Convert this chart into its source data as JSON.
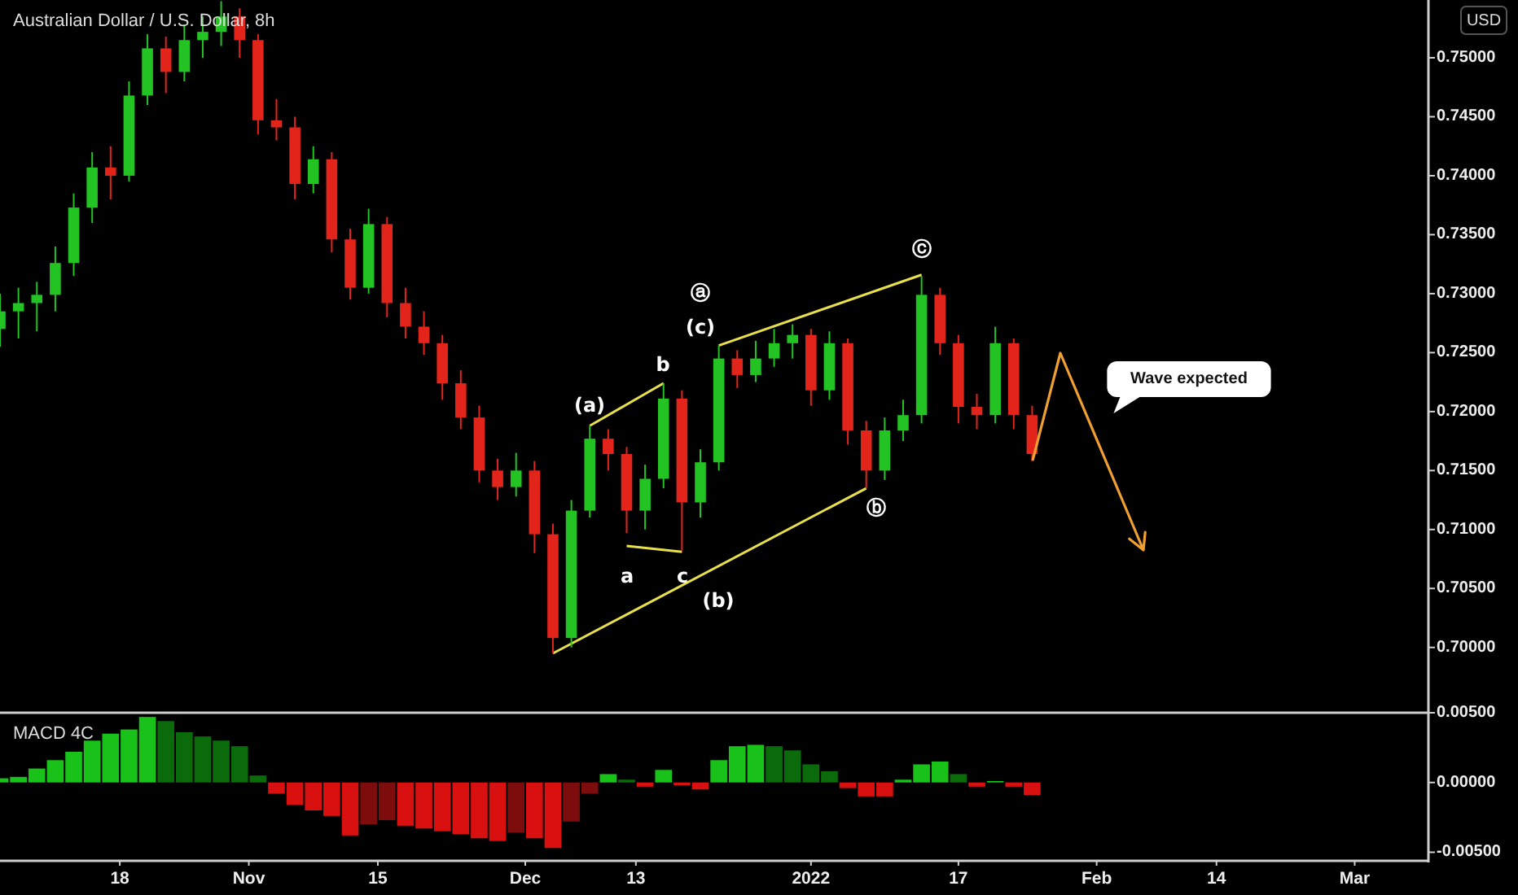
{
  "chart_data": [
    {
      "type": "candlestick",
      "title": "Australian Dollar / U.S. Dollar, 8h",
      "ylabel": "USD",
      "x": [
        "2021-10-05",
        "2021-10-07",
        "2021-10-09",
        "2021-10-11",
        "2021-10-13",
        "2021-10-15",
        "2021-10-17",
        "2021-10-19",
        "2021-10-21",
        "2021-10-23",
        "2021-10-25",
        "2021-10-27",
        "2021-10-29",
        "2021-10-31",
        "2021-11-02",
        "2021-11-04",
        "2021-11-06",
        "2021-11-08",
        "2021-11-10",
        "2021-11-12",
        "2021-11-14",
        "2021-11-16",
        "2021-11-18",
        "2021-11-20",
        "2021-11-22",
        "2021-11-24",
        "2021-11-26",
        "2021-11-28",
        "2021-11-30",
        "2021-12-02",
        "2021-12-04",
        "2021-12-06",
        "2021-12-08",
        "2021-12-10",
        "2021-12-12",
        "2021-12-14",
        "2021-12-16",
        "2021-12-18",
        "2021-12-20",
        "2021-12-22",
        "2021-12-24",
        "2021-12-26",
        "2021-12-28",
        "2021-12-30",
        "2022-01-01",
        "2022-01-03",
        "2022-01-05",
        "2022-01-07",
        "2022-01-09",
        "2022-01-11",
        "2022-01-13",
        "2022-01-15",
        "2022-01-17",
        "2022-01-19",
        "2022-01-21",
        "2022-01-23",
        "2022-01-25"
      ],
      "ohlc": [
        [
          0.727,
          0.73,
          0.7255,
          0.7285
        ],
        [
          0.7285,
          0.7305,
          0.7262,
          0.7292
        ],
        [
          0.7292,
          0.731,
          0.7268,
          0.7299
        ],
        [
          0.7299,
          0.734,
          0.7285,
          0.7326
        ],
        [
          0.7326,
          0.7385,
          0.7315,
          0.7373
        ],
        [
          0.7373,
          0.742,
          0.736,
          0.7407
        ],
        [
          0.7407,
          0.7425,
          0.738,
          0.74
        ],
        [
          0.74,
          0.748,
          0.7395,
          0.7468
        ],
        [
          0.7468,
          0.752,
          0.746,
          0.7508
        ],
        [
          0.7508,
          0.7518,
          0.747,
          0.7488
        ],
        [
          0.7488,
          0.7528,
          0.748,
          0.7515
        ],
        [
          0.7515,
          0.7535,
          0.75,
          0.7522
        ],
        [
          0.7522,
          0.7548,
          0.751,
          0.7535
        ],
        [
          0.7535,
          0.7542,
          0.75,
          0.7515
        ],
        [
          0.7515,
          0.752,
          0.7435,
          0.7447
        ],
        [
          0.7447,
          0.7465,
          0.743,
          0.7441
        ],
        [
          0.7441,
          0.745,
          0.738,
          0.7393
        ],
        [
          0.7393,
          0.7425,
          0.7385,
          0.7414
        ],
        [
          0.7414,
          0.742,
          0.7335,
          0.7346
        ],
        [
          0.7346,
          0.7355,
          0.7295,
          0.7305
        ],
        [
          0.7305,
          0.7372,
          0.73,
          0.7359
        ],
        [
          0.7359,
          0.7365,
          0.728,
          0.7292
        ],
        [
          0.7292,
          0.7305,
          0.7262,
          0.7272
        ],
        [
          0.7272,
          0.7285,
          0.7248,
          0.7258
        ],
        [
          0.7258,
          0.7265,
          0.721,
          0.7224
        ],
        [
          0.7224,
          0.7235,
          0.7185,
          0.7195
        ],
        [
          0.7195,
          0.7205,
          0.714,
          0.715
        ],
        [
          0.715,
          0.716,
          0.7125,
          0.7136
        ],
        [
          0.7136,
          0.7165,
          0.7128,
          0.715
        ],
        [
          0.715,
          0.7158,
          0.708,
          0.7096
        ],
        [
          0.7096,
          0.7105,
          0.6995,
          0.7008
        ],
        [
          0.7008,
          0.7125,
          0.7,
          0.7116
        ],
        [
          0.7116,
          0.7188,
          0.711,
          0.7177
        ],
        [
          0.7177,
          0.7185,
          0.715,
          0.7164
        ],
        [
          0.7164,
          0.717,
          0.7097,
          0.7116
        ],
        [
          0.7116,
          0.7155,
          0.71,
          0.7143
        ],
        [
          0.7143,
          0.7224,
          0.7135,
          0.7211
        ],
        [
          0.7211,
          0.7218,
          0.7082,
          0.7123
        ],
        [
          0.7123,
          0.7168,
          0.711,
          0.7157
        ],
        [
          0.7157,
          0.7256,
          0.715,
          0.7245
        ],
        [
          0.7245,
          0.7252,
          0.722,
          0.7231
        ],
        [
          0.7231,
          0.726,
          0.7225,
          0.7245
        ],
        [
          0.7245,
          0.727,
          0.7238,
          0.7258
        ],
        [
          0.7258,
          0.7274,
          0.7245,
          0.7265
        ],
        [
          0.7265,
          0.727,
          0.7205,
          0.7218
        ],
        [
          0.7218,
          0.7268,
          0.721,
          0.7258
        ],
        [
          0.7258,
          0.7262,
          0.7172,
          0.7184
        ],
        [
          0.7184,
          0.7192,
          0.7135,
          0.715
        ],
        [
          0.715,
          0.7195,
          0.7142,
          0.7184
        ],
        [
          0.7184,
          0.721,
          0.7175,
          0.7197
        ],
        [
          0.7197,
          0.7315,
          0.719,
          0.7299
        ],
        [
          0.7299,
          0.7305,
          0.7248,
          0.7258
        ],
        [
          0.7258,
          0.7265,
          0.719,
          0.7204
        ],
        [
          0.7204,
          0.7215,
          0.7185,
          0.7197
        ],
        [
          0.7197,
          0.7272,
          0.719,
          0.7258
        ],
        [
          0.7258,
          0.7262,
          0.7185,
          0.7197
        ],
        [
          0.7197,
          0.7205,
          0.7158,
          0.7164
        ]
      ],
      "colors": [
        "#22c322",
        "#22c322",
        "#22c322",
        "#22c322",
        "#22c322",
        "#22c322",
        "#e3241b",
        "#22c322",
        "#22c322",
        "#e3241b",
        "#22c322",
        "#22c322",
        "#22c322",
        "#e3241b",
        "#e3241b",
        "#e3241b",
        "#e3241b",
        "#22c322",
        "#e3241b",
        "#e3241b",
        "#22c322",
        "#e3241b",
        "#e3241b",
        "#e3241b",
        "#e3241b",
        "#e3241b",
        "#e3241b",
        "#e3241b",
        "#22c322",
        "#e3241b",
        "#e3241b",
        "#22c322",
        "#22c322",
        "#e3241b",
        "#e3241b",
        "#22c322",
        "#22c322",
        "#e3241b",
        "#22c322",
        "#22c322",
        "#e3241b",
        "#22c322",
        "#22c322",
        "#22c322",
        "#e3241b",
        "#22c322",
        "#e3241b",
        "#e3241b",
        "#22c322",
        "#22c322",
        "#22c322",
        "#e3241b",
        "#e3241b",
        "#e3241b",
        "#22c322",
        "#e3241b",
        "#e3241b"
      ],
      "series": [
        {
          "type": "line",
          "color": "#e8e04a",
          "x": [
            "2021-12-04",
            "2022-01-07"
          ],
          "values": [
            0.6995,
            0.7135
          ]
        },
        {
          "type": "line",
          "color": "#e8e04a",
          "x": [
            "2021-12-22",
            "2022-01-13"
          ],
          "values": [
            0.7256,
            0.7316
          ]
        },
        {
          "type": "line",
          "color": "#e8e04a",
          "x": [
            "2021-12-08",
            "2021-12-16"
          ],
          "values": [
            0.7188,
            0.7224
          ]
        },
        {
          "type": "line",
          "color": "#e8e04a",
          "x": [
            "2021-12-12",
            "2021-12-18"
          ],
          "values": [
            0.7086,
            0.7081
          ]
        }
      ],
      "annotations": [
        "(a)",
        "b",
        "a",
        "c",
        "(b)",
        "(c)",
        "ⓐ",
        "ⓑ",
        "ⓒ",
        "Wave expected"
      ],
      "xlim": [
        "2021-10-05",
        "2022-03-09"
      ],
      "ylim": [
        0.6946,
        0.7549
      ],
      "yticks": [
        {
          "value": 0.7,
          "label": "0.70000"
        },
        {
          "value": 0.705,
          "label": "0.70500"
        },
        {
          "value": 0.71,
          "label": "0.71000"
        },
        {
          "value": 0.715,
          "label": "0.71500"
        },
        {
          "value": 0.72,
          "label": "0.72000"
        },
        {
          "value": 0.725,
          "label": "0.72500"
        },
        {
          "value": 0.73,
          "label": "0.73000"
        },
        {
          "value": 0.735,
          "label": "0.73500"
        },
        {
          "value": 0.74,
          "label": "0.74000"
        },
        {
          "value": 0.745,
          "label": "0.74500"
        },
        {
          "value": 0.75,
          "label": "0.75000"
        }
      ],
      "tick_labels": "y",
      "grid": false
    },
    {
      "type": "bar",
      "title": "MACD 4C",
      "x": [
        "2021-10-05",
        "2021-10-07",
        "2021-10-09",
        "2021-10-11",
        "2021-10-13",
        "2021-10-15",
        "2021-10-17",
        "2021-10-19",
        "2021-10-21",
        "2021-10-23",
        "2021-10-25",
        "2021-10-27",
        "2021-10-29",
        "2021-10-31",
        "2021-11-02",
        "2021-11-04",
        "2021-11-06",
        "2021-11-08",
        "2021-11-10",
        "2021-11-12",
        "2021-11-14",
        "2021-11-16",
        "2021-11-18",
        "2021-11-20",
        "2021-11-22",
        "2021-11-24",
        "2021-11-26",
        "2021-11-28",
        "2021-11-30",
        "2021-12-02",
        "2021-12-04",
        "2021-12-06",
        "2021-12-08",
        "2021-12-10",
        "2021-12-12",
        "2021-12-14",
        "2021-12-16",
        "2021-12-18",
        "2021-12-20",
        "2021-12-22",
        "2021-12-24",
        "2021-12-26",
        "2021-12-28",
        "2021-12-30",
        "2022-01-01",
        "2022-01-03",
        "2022-01-05",
        "2022-01-07",
        "2022-01-09",
        "2022-01-11",
        "2022-01-13",
        "2022-01-15",
        "2022-01-17",
        "2022-01-19",
        "2022-01-21",
        "2022-01-23",
        "2022-01-25"
      ],
      "values": [
        0.0003,
        0.0004,
        0.001,
        0.0016,
        0.0022,
        0.003,
        0.0035,
        0.0038,
        0.0047,
        0.0044,
        0.0036,
        0.0033,
        0.003,
        0.0026,
        0.0005,
        -0.0008,
        -0.0016,
        -0.002,
        -0.0024,
        -0.0038,
        -0.003,
        -0.0027,
        -0.0031,
        -0.0033,
        -0.0035,
        -0.0037,
        -0.004,
        -0.0042,
        -0.0036,
        -0.004,
        -0.0047,
        -0.0028,
        -0.0008,
        0.0006,
        0.0002,
        -0.0003,
        0.0009,
        -0.0002,
        -0.0005,
        0.0016,
        0.0026,
        0.0027,
        0.0026,
        0.0023,
        0.0013,
        0.0008,
        -0.0004,
        -0.001,
        -0.001,
        0.0002,
        0.0013,
        0.0015,
        0.0006,
        -0.0003,
        0.0001,
        -0.0003,
        -0.0009
      ],
      "colors": [
        "#19c219",
        "#19c219",
        "#19c219",
        "#19c219",
        "#19c219",
        "#19c219",
        "#19c219",
        "#19c219",
        "#19c219",
        "#0b6b0b",
        "#0b6b0b",
        "#0b6b0b",
        "#0b6b0b",
        "#0b6b0b",
        "#0b6b0b",
        "#d91010",
        "#d91010",
        "#d91010",
        "#d91010",
        "#d91010",
        "#7d0d0d",
        "#7d0d0d",
        "#d91010",
        "#d91010",
        "#d91010",
        "#d91010",
        "#d91010",
        "#d91010",
        "#7d0d0d",
        "#d91010",
        "#d91010",
        "#7d0d0d",
        "#7d0d0d",
        "#19c219",
        "#0b6b0b",
        "#d91010",
        "#19c219",
        "#d91010",
        "#d91010",
        "#19c219",
        "#19c219",
        "#19c219",
        "#0b6b0b",
        "#0b6b0b",
        "#0b6b0b",
        "#0b6b0b",
        "#d91010",
        "#d91010",
        "#d91010",
        "#19c219",
        "#19c219",
        "#19c219",
        "#0b6b0b",
        "#d91010",
        "#19c219",
        "#d91010",
        "#d91010"
      ],
      "xlim": [
        "2021-10-05",
        "2022-03-09"
      ],
      "xticks": [
        {
          "value": "2021-10-18",
          "label": "18"
        },
        {
          "value": "2021-11-01",
          "label": "Nov"
        },
        {
          "value": "2021-11-15",
          "label": "15"
        },
        {
          "value": "2021-12-01",
          "label": "Dec"
        },
        {
          "value": "2021-12-13",
          "label": "13"
        },
        {
          "value": "2022-01-01",
          "label": "2022"
        },
        {
          "value": "2022-01-17",
          "label": "17"
        },
        {
          "value": "2022-02-01",
          "label": "Feb"
        },
        {
          "value": "2022-02-14",
          "label": "14"
        },
        {
          "value": "2022-03-01",
          "label": "Mar"
        }
      ],
      "ylim": [
        -0.0055,
        0.005
      ],
      "yticks": [
        {
          "value": 0.005,
          "label": "0.00500"
        },
        {
          "value": 0,
          "label": "0.00000"
        },
        {
          "value": -0.005,
          "label": "-0.00500"
        }
      ],
      "grid": false
    }
  ]
}
